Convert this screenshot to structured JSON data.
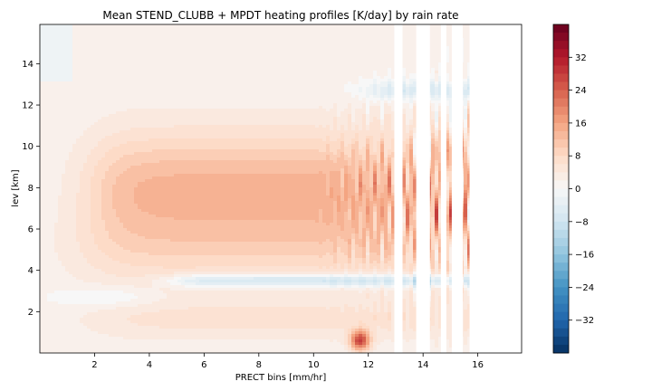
{
  "chart_data": {
    "type": "heatmap",
    "title": "Mean STEND_CLUBB + MPDT heating profiles [K/day] by rain rate",
    "xlabel": "PRECT bins [mm/hr]",
    "ylabel": "lev [km]",
    "xlim": [
      0,
      17.6
    ],
    "ylim": [
      0,
      15.9
    ],
    "x_ticks": [
      "2",
      "4",
      "6",
      "8",
      "10",
      "12",
      "14",
      "16"
    ],
    "y_ticks": [
      "2",
      "4",
      "6",
      "8",
      "10",
      "12",
      "14"
    ],
    "colorbar": {
      "cmap": "RdBu_r",
      "vmin": -40,
      "vmax": 40,
      "ticks": [
        "32",
        "24",
        "16",
        "8",
        "0",
        "−8",
        "−16",
        "−24",
        "−32"
      ]
    },
    "grid": false,
    "missing_x_bands": [
      [
        12.95,
        13.25
      ],
      [
        13.75,
        14.25
      ],
      [
        14.65,
        14.85
      ],
      [
        15.05,
        15.45
      ],
      [
        15.7,
        17.6
      ]
    ],
    "field_features": [
      {
        "name": "mid-level heating maximum",
        "x_range": [
          2,
          13
        ],
        "lev_km": 8.0,
        "value": 12
      },
      {
        "name": "melting-level cooling band",
        "x_range": [
          5,
          16
        ],
        "lev_km": 3.5,
        "value": -12
      },
      {
        "name": "shallow low-level cooling",
        "x_range": [
          0.5,
          4
        ],
        "lev_km": 2.7,
        "value": -4
      },
      {
        "name": "upper-level cooling",
        "x_range": [
          12,
          15.8
        ],
        "lev_km": 12.7,
        "value": -8
      },
      {
        "name": "near-surface heating spikes",
        "x_range": [
          11,
          12.3
        ],
        "lev_km": 0.6,
        "value": 25
      }
    ]
  }
}
